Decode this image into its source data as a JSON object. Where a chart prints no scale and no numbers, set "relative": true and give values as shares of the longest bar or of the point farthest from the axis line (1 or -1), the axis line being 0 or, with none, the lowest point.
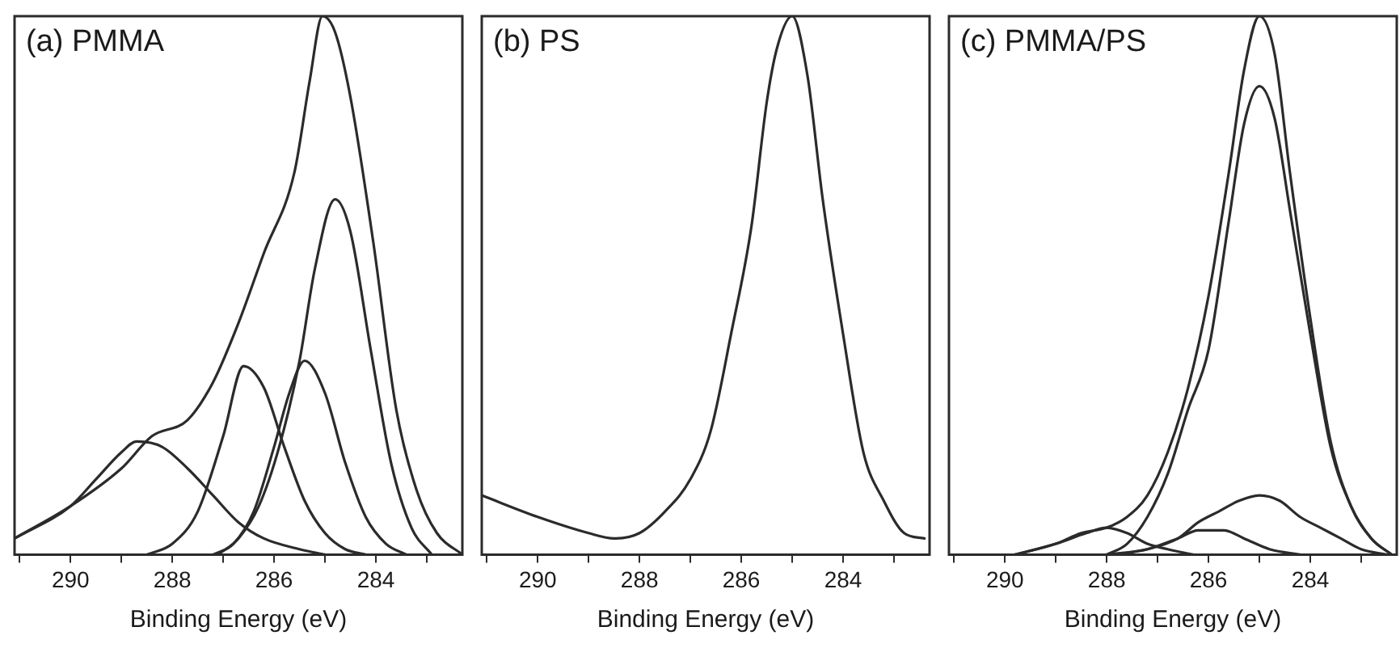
{
  "chart_data": [
    {
      "type": "line",
      "title": "(a) PMMA",
      "xlabel": "Binding Energy (eV)",
      "relative": true,
      "marker": "none",
      "line_style": "solid",
      "xlim": [
        291.1,
        282.3
      ],
      "xticks": [
        {
          "value": 291,
          "label": null
        },
        290,
        {
          "value": 289,
          "label": null
        },
        288,
        {
          "value": 287,
          "label": null
        },
        286,
        {
          "value": 285,
          "label": null
        },
        284,
        {
          "value": 283,
          "label": null
        }
      ],
      "series": [
        {
          "color": "#2b2b2b",
          "x": [
            291.1,
            290,
            289,
            288.4,
            287.7,
            287.2,
            286.7,
            286.2,
            285.6,
            285.3,
            285.05,
            284.8,
            284.5,
            284.05,
            283.6,
            283.2,
            282.8,
            282.3
          ],
          "values": [
            0.03,
            0.09,
            0.16,
            0.22,
            0.25,
            0.32,
            0.43,
            0.56,
            0.71,
            0.88,
            1,
            0.97,
            0.85,
            0.58,
            0.27,
            0.12,
            0.04,
            0
          ]
        },
        {
          "color": "#2b2b2b",
          "x": [
            291.1,
            290,
            289.5,
            289,
            288.7,
            288.2,
            287.7,
            287.2,
            286.7,
            286.2,
            285.5,
            285
          ],
          "values": [
            0.03,
            0.09,
            0.14,
            0.19,
            0.21,
            0.2,
            0.16,
            0.11,
            0.06,
            0.03,
            0.01,
            0
          ]
        },
        {
          "color": "#2b2b2b",
          "x": [
            288.5,
            288,
            287.5,
            287,
            286.6,
            286.2,
            285.8,
            285.4,
            285,
            284.6,
            284.2
          ],
          "values": [
            0,
            0.02,
            0.08,
            0.22,
            0.35,
            0.31,
            0.2,
            0.1,
            0.04,
            0.01,
            0
          ]
        },
        {
          "color": "#2b2b2b",
          "x": [
            287.2,
            286.8,
            286.4,
            286,
            285.7,
            285.4,
            285,
            284.6,
            284.2,
            283.8,
            283.4
          ],
          "values": [
            0,
            0.02,
            0.08,
            0.2,
            0.3,
            0.36,
            0.3,
            0.17,
            0.07,
            0.02,
            0
          ]
        },
        {
          "color": "#2b2b2b",
          "x": [
            287.1,
            286.7,
            286.3,
            285.9,
            285.5,
            285.2,
            284.8,
            284.5,
            284.1,
            283.7,
            283.3,
            282.9
          ],
          "values": [
            0,
            0.03,
            0.09,
            0.2,
            0.36,
            0.53,
            0.66,
            0.6,
            0.38,
            0.17,
            0.05,
            0
          ]
        }
      ]
    },
    {
      "type": "line",
      "title": "(b) PS",
      "xlabel": "Binding Energy (eV)",
      "relative": true,
      "marker": "none",
      "line_style": "solid",
      "xlim": [
        291.1,
        282.3
      ],
      "xticks": [
        {
          "value": 291,
          "label": null
        },
        290,
        {
          "value": 289,
          "label": null
        },
        288,
        {
          "value": 287,
          "label": null
        },
        286,
        {
          "value": 285,
          "label": null
        },
        284,
        {
          "value": 283,
          "label": null
        }
      ],
      "series": [
        {
          "color": "#2b2b2b",
          "x": [
            291.1,
            290,
            289,
            288.5,
            288,
            287.5,
            287,
            286.6,
            286.2,
            285.8,
            285.5,
            285.3,
            285,
            284.7,
            284.4,
            284,
            283.6,
            283.2,
            282.8,
            282.4
          ],
          "values": [
            0.11,
            0.07,
            0.04,
            0.03,
            0.04,
            0.08,
            0.14,
            0.23,
            0.41,
            0.61,
            0.84,
            0.94,
            1,
            0.89,
            0.66,
            0.41,
            0.19,
            0.1,
            0.04,
            0.03
          ]
        }
      ]
    },
    {
      "type": "line",
      "title": "(c) PMMA/PS",
      "xlabel": "Binding Energy (eV)",
      "relative": true,
      "marker": "none",
      "line_style": "solid",
      "xlim": [
        291.1,
        282.3
      ],
      "xticks": [
        {
          "value": 291,
          "label": null
        },
        290,
        {
          "value": 289,
          "label": null
        },
        288,
        {
          "value": 287,
          "label": null
        },
        286,
        {
          "value": 285,
          "label": null
        },
        284,
        {
          "value": 283,
          "label": null
        }
      ],
      "series": [
        {
          "color": "#2b2b2b",
          "x": [
            289.8,
            289,
            288.5,
            288,
            287.6,
            287.2,
            286.8,
            286.4,
            286,
            285.6,
            285.3,
            285,
            284.7,
            284.4,
            284,
            283.6,
            283.2,
            282.8,
            282.4
          ],
          "values": [
            0,
            0.02,
            0.04,
            0.05,
            0.07,
            0.11,
            0.19,
            0.31,
            0.48,
            0.71,
            0.9,
            1,
            0.93,
            0.71,
            0.44,
            0.21,
            0.09,
            0.03,
            0
          ]
        },
        {
          "color": "#2b2b2b",
          "x": [
            288,
            287.6,
            287.2,
            286.8,
            286.4,
            286,
            285.6,
            285.3,
            285,
            284.7,
            284.4,
            284,
            283.6,
            283.2,
            282.8,
            282.4
          ],
          "values": [
            0,
            0.02,
            0.07,
            0.15,
            0.27,
            0.38,
            0.62,
            0.8,
            0.87,
            0.81,
            0.64,
            0.41,
            0.2,
            0.09,
            0.03,
            0
          ]
        },
        {
          "color": "#2b2b2b",
          "x": [
            288,
            287.2,
            286.6,
            286.2,
            285.8,
            285.4,
            285,
            284.6,
            284.2,
            283.8,
            283.4,
            283,
            282.5
          ],
          "values": [
            0,
            0.01,
            0.03,
            0.06,
            0.08,
            0.1,
            0.11,
            0.1,
            0.07,
            0.05,
            0.03,
            0.01,
            0
          ]
        },
        {
          "color": "#2b2b2b",
          "x": [
            289.8,
            289,
            288.4,
            288,
            287.6,
            287.2,
            286.8,
            286.3
          ],
          "values": [
            0,
            0.02,
            0.04,
            0.05,
            0.04,
            0.02,
            0.01,
            0
          ]
        },
        {
          "color": "#2b2b2b",
          "x": [
            287.8,
            287.2,
            286.6,
            286.2,
            285.7,
            285.3,
            284.8,
            284.2
          ],
          "values": [
            0,
            0.01,
            0.03,
            0.045,
            0.045,
            0.03,
            0.01,
            0
          ]
        }
      ]
    }
  ]
}
